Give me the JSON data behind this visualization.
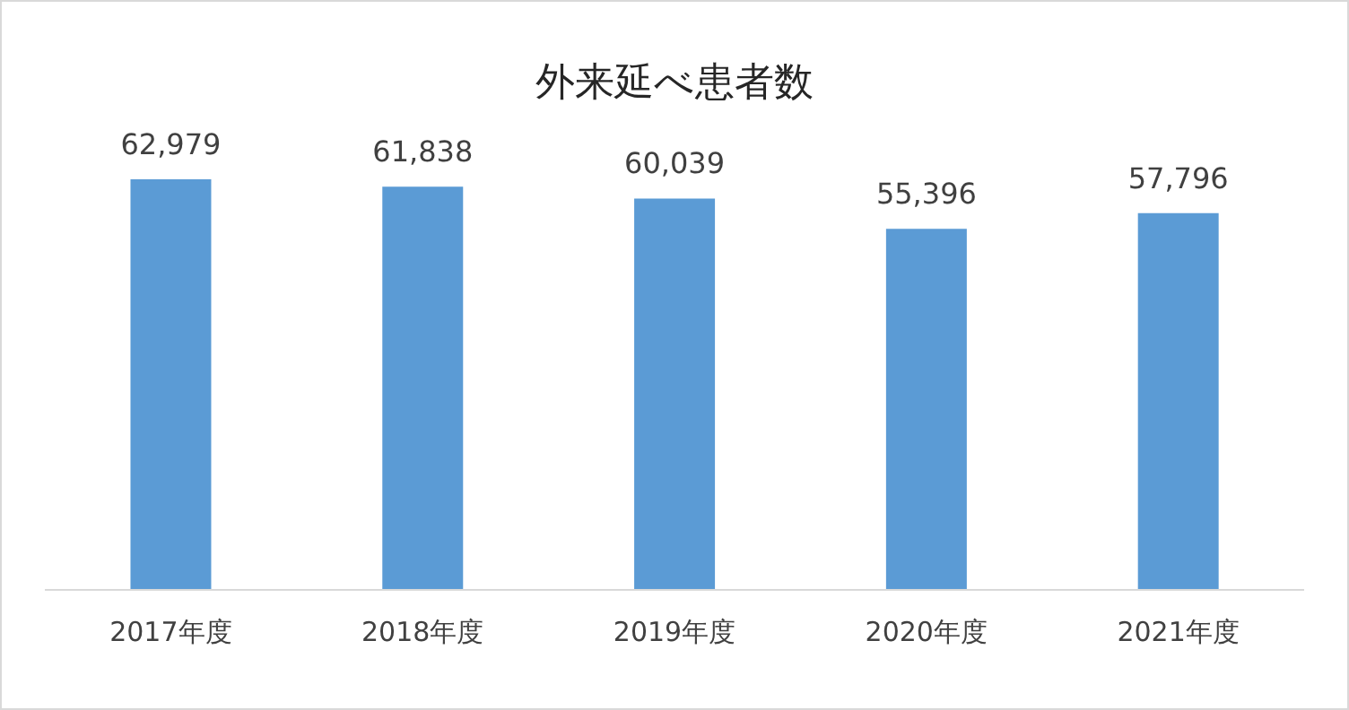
{
  "chart_data": {
    "type": "bar",
    "title": "外来延べ患者数",
    "categories": [
      "2017年度",
      "2018年度",
      "2019年度",
      "2020年度",
      "2021年度"
    ],
    "values": [
      62979,
      61838,
      60039,
      55396,
      57796
    ],
    "value_labels": [
      "62,979",
      "61,838",
      "60,039",
      "55,396",
      "57,796"
    ],
    "color": "#5b9bd5"
  }
}
